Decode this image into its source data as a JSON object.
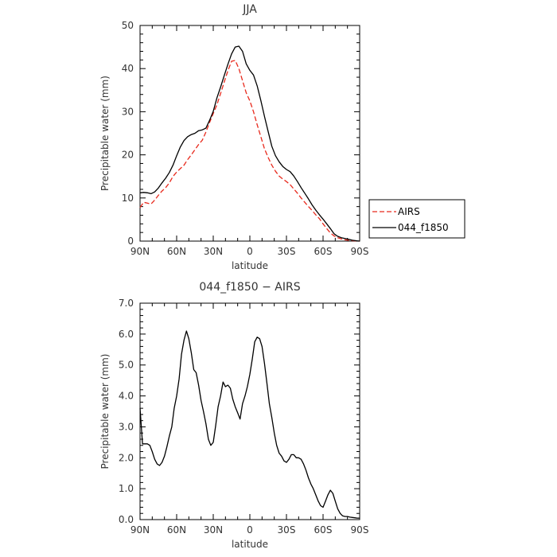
{
  "chart_data": [
    {
      "type": "line",
      "title": "JJA",
      "xlabel": "latitude",
      "ylabel": "Precipitable water  (mm)",
      "x_tick_labels": [
        "90N",
        "60N",
        "30N",
        "0",
        "30S",
        "60S",
        "90S"
      ],
      "y_tick_labels": [
        "0",
        "10",
        "20",
        "30",
        "40",
        "50"
      ],
      "xlim": [
        90,
        -90
      ],
      "ylim": [
        0,
        50
      ],
      "grid": false,
      "legend": "outside-right",
      "series": [
        {
          "name": "AIRS",
          "color": "#e8291c",
          "dash": true,
          "x": [
            90,
            87,
            84,
            81,
            78,
            75,
            72,
            69,
            66,
            63,
            60,
            57,
            54,
            51,
            48,
            45,
            42,
            39,
            36,
            33,
            30,
            27,
            24,
            21,
            18,
            15,
            12,
            9,
            6,
            3,
            0,
            -3,
            -6,
            -9,
            -12,
            -15,
            -18,
            -21,
            -24,
            -27,
            -30,
            -33,
            -36,
            -39,
            -42,
            -45,
            -48,
            -51,
            -54,
            -57,
            -60,
            -63,
            -66,
            -69,
            -72,
            -75,
            -78,
            -81,
            -84,
            -87,
            -90
          ],
          "values": [
            7.8,
            9.0,
            8.8,
            8.6,
            9.5,
            10.6,
            11.6,
            12.4,
            13.5,
            15.0,
            16.0,
            16.8,
            17.6,
            18.9,
            20.0,
            21.2,
            22.4,
            23.4,
            25.3,
            27.5,
            29.6,
            31.6,
            34.2,
            36.9,
            39.5,
            41.7,
            41.9,
            40.0,
            37.2,
            34.4,
            32.5,
            30.0,
            27.0,
            24.2,
            21.4,
            19.4,
            17.6,
            16.2,
            15.1,
            14.4,
            13.8,
            13.1,
            12.1,
            11.1,
            10.0,
            9.0,
            8.0,
            7.1,
            6.1,
            5.2,
            4.0,
            2.9,
            1.9,
            1.2,
            0.8,
            0.5,
            0.3,
            0.2,
            0.1,
            0.05,
            0.0
          ]
        },
        {
          "name": "044_f1850",
          "color": "#000000",
          "dash": false,
          "x": [
            90,
            87,
            84,
            81,
            78,
            75,
            72,
            69,
            66,
            63,
            60,
            57,
            54,
            51,
            48,
            45,
            42,
            39,
            36,
            33,
            30,
            27,
            24,
            21,
            18,
            15,
            12,
            9,
            6,
            3,
            0,
            -3,
            -6,
            -9,
            -12,
            -15,
            -18,
            -21,
            -24,
            -27,
            -30,
            -33,
            -36,
            -39,
            -42,
            -45,
            -48,
            -51,
            -54,
            -57,
            -60,
            -63,
            -66,
            -69,
            -72,
            -75,
            -78,
            -81,
            -84,
            -87,
            -90
          ],
          "values": [
            11.2,
            11.3,
            11.2,
            11.0,
            11.4,
            12.3,
            13.5,
            14.6,
            15.9,
            17.6,
            19.8,
            21.8,
            23.3,
            24.2,
            24.7,
            25.0,
            25.6,
            25.8,
            26.2,
            28.0,
            30.1,
            33.2,
            35.7,
            38.4,
            41.0,
            43.4,
            45.0,
            45.2,
            44.0,
            41.1,
            39.6,
            38.5,
            36.0,
            32.6,
            28.9,
            25.4,
            22.0,
            19.8,
            18.4,
            17.3,
            16.6,
            16.1,
            15.1,
            13.8,
            12.4,
            11.1,
            9.8,
            8.4,
            7.2,
            6.1,
            5.1,
            4.0,
            2.9,
            1.7,
            1.1,
            0.8,
            0.6,
            0.4,
            0.2,
            0.1,
            0.0
          ]
        }
      ]
    },
    {
      "type": "line",
      "title": "044_f1850 − AIRS",
      "xlabel": "latitude",
      "ylabel": "Precipitable water  (mm)",
      "x_tick_labels": [
        "90N",
        "60N",
        "30N",
        "0",
        "30S",
        "60S",
        "90S"
      ],
      "y_tick_labels": [
        "0.0",
        "1.0",
        "2.0",
        "3.0",
        "4.0",
        "5.0",
        "6.0",
        "7.0"
      ],
      "xlim": [
        90,
        -90
      ],
      "ylim": [
        0,
        7
      ],
      "grid": false,
      "series": [
        {
          "color": "#000000",
          "dash": false,
          "x": [
            90,
            88,
            86,
            84,
            82,
            80,
            78,
            76,
            74,
            72,
            70,
            68,
            66,
            64,
            62,
            60,
            58,
            56,
            54,
            52,
            50,
            48,
            46,
            44,
            42,
            40,
            38,
            36,
            34,
            32,
            30,
            28,
            26,
            24,
            22,
            20,
            18,
            16,
            14,
            12,
            10,
            8,
            6,
            4,
            2,
            0,
            -2,
            -4,
            -6,
            -8,
            -10,
            -12,
            -14,
            -16,
            -18,
            -20,
            -22,
            -24,
            -26,
            -28,
            -30,
            -32,
            -34,
            -36,
            -38,
            -40,
            -42,
            -44,
            -46,
            -48,
            -50,
            -52,
            -54,
            -56,
            -58,
            -60,
            -62,
            -64,
            -66,
            -68,
            -70,
            -72,
            -74,
            -76,
            -78,
            -80,
            -82,
            -84,
            -86,
            -88,
            -90
          ],
          "values": [
            3.6,
            2.45,
            2.45,
            2.45,
            2.4,
            2.2,
            1.95,
            1.8,
            1.75,
            1.85,
            2.05,
            2.35,
            2.7,
            3.0,
            3.6,
            4.0,
            4.55,
            5.35,
            5.8,
            6.1,
            5.85,
            5.4,
            4.85,
            4.75,
            4.35,
            3.85,
            3.5,
            3.1,
            2.6,
            2.4,
            2.5,
            3.05,
            3.65,
            4.0,
            4.45,
            4.3,
            4.35,
            4.25,
            3.9,
            3.65,
            3.45,
            3.25,
            3.75,
            4.0,
            4.3,
            4.7,
            5.2,
            5.75,
            5.9,
            5.85,
            5.6,
            5.05,
            4.4,
            3.75,
            3.3,
            2.8,
            2.4,
            2.15,
            2.05,
            1.9,
            1.85,
            1.95,
            2.1,
            2.1,
            2.0,
            2.0,
            1.95,
            1.8,
            1.6,
            1.35,
            1.15,
            1.0,
            0.8,
            0.6,
            0.45,
            0.4,
            0.6,
            0.8,
            0.95,
            0.85,
            0.6,
            0.35,
            0.2,
            0.12,
            0.1,
            0.1,
            0.08,
            0.07,
            0.06,
            0.05,
            0.05
          ]
        }
      ]
    }
  ]
}
